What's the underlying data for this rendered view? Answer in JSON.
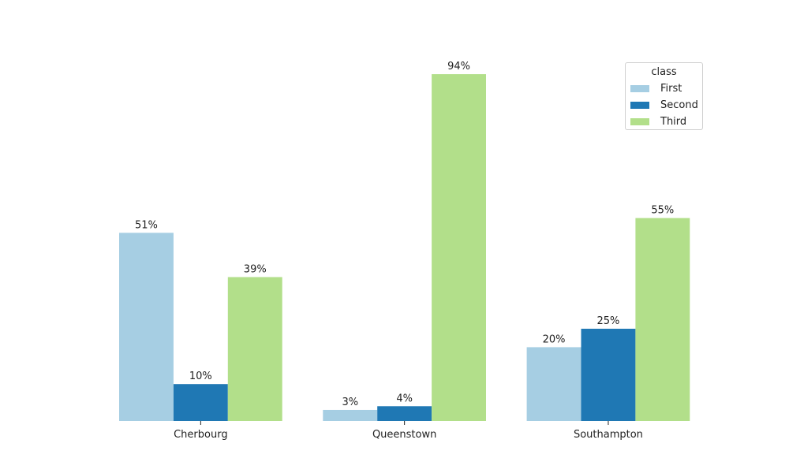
{
  "chart_data": {
    "type": "bar",
    "title": "",
    "xlabel": "",
    "ylabel": "",
    "ylim": [
      0,
      100
    ],
    "grid": false,
    "categories": [
      "Cherbourg",
      "Queenstown",
      "Southampton"
    ],
    "series": [
      {
        "name": "First",
        "color": "#a6cee3",
        "values": [
          51,
          3,
          20
        ],
        "labels": [
          "51%",
          "3%",
          "20%"
        ]
      },
      {
        "name": "Second",
        "color": "#1f78b4",
        "values": [
          10,
          4,
          25
        ],
        "labels": [
          "10%",
          "4%",
          "25%"
        ]
      },
      {
        "name": "Third",
        "color": "#b2df8a",
        "values": [
          39,
          94,
          55
        ],
        "labels": [
          "39%",
          "94%",
          "55%"
        ]
      }
    ],
    "legend": {
      "title": "class",
      "position": "top-right"
    }
  }
}
